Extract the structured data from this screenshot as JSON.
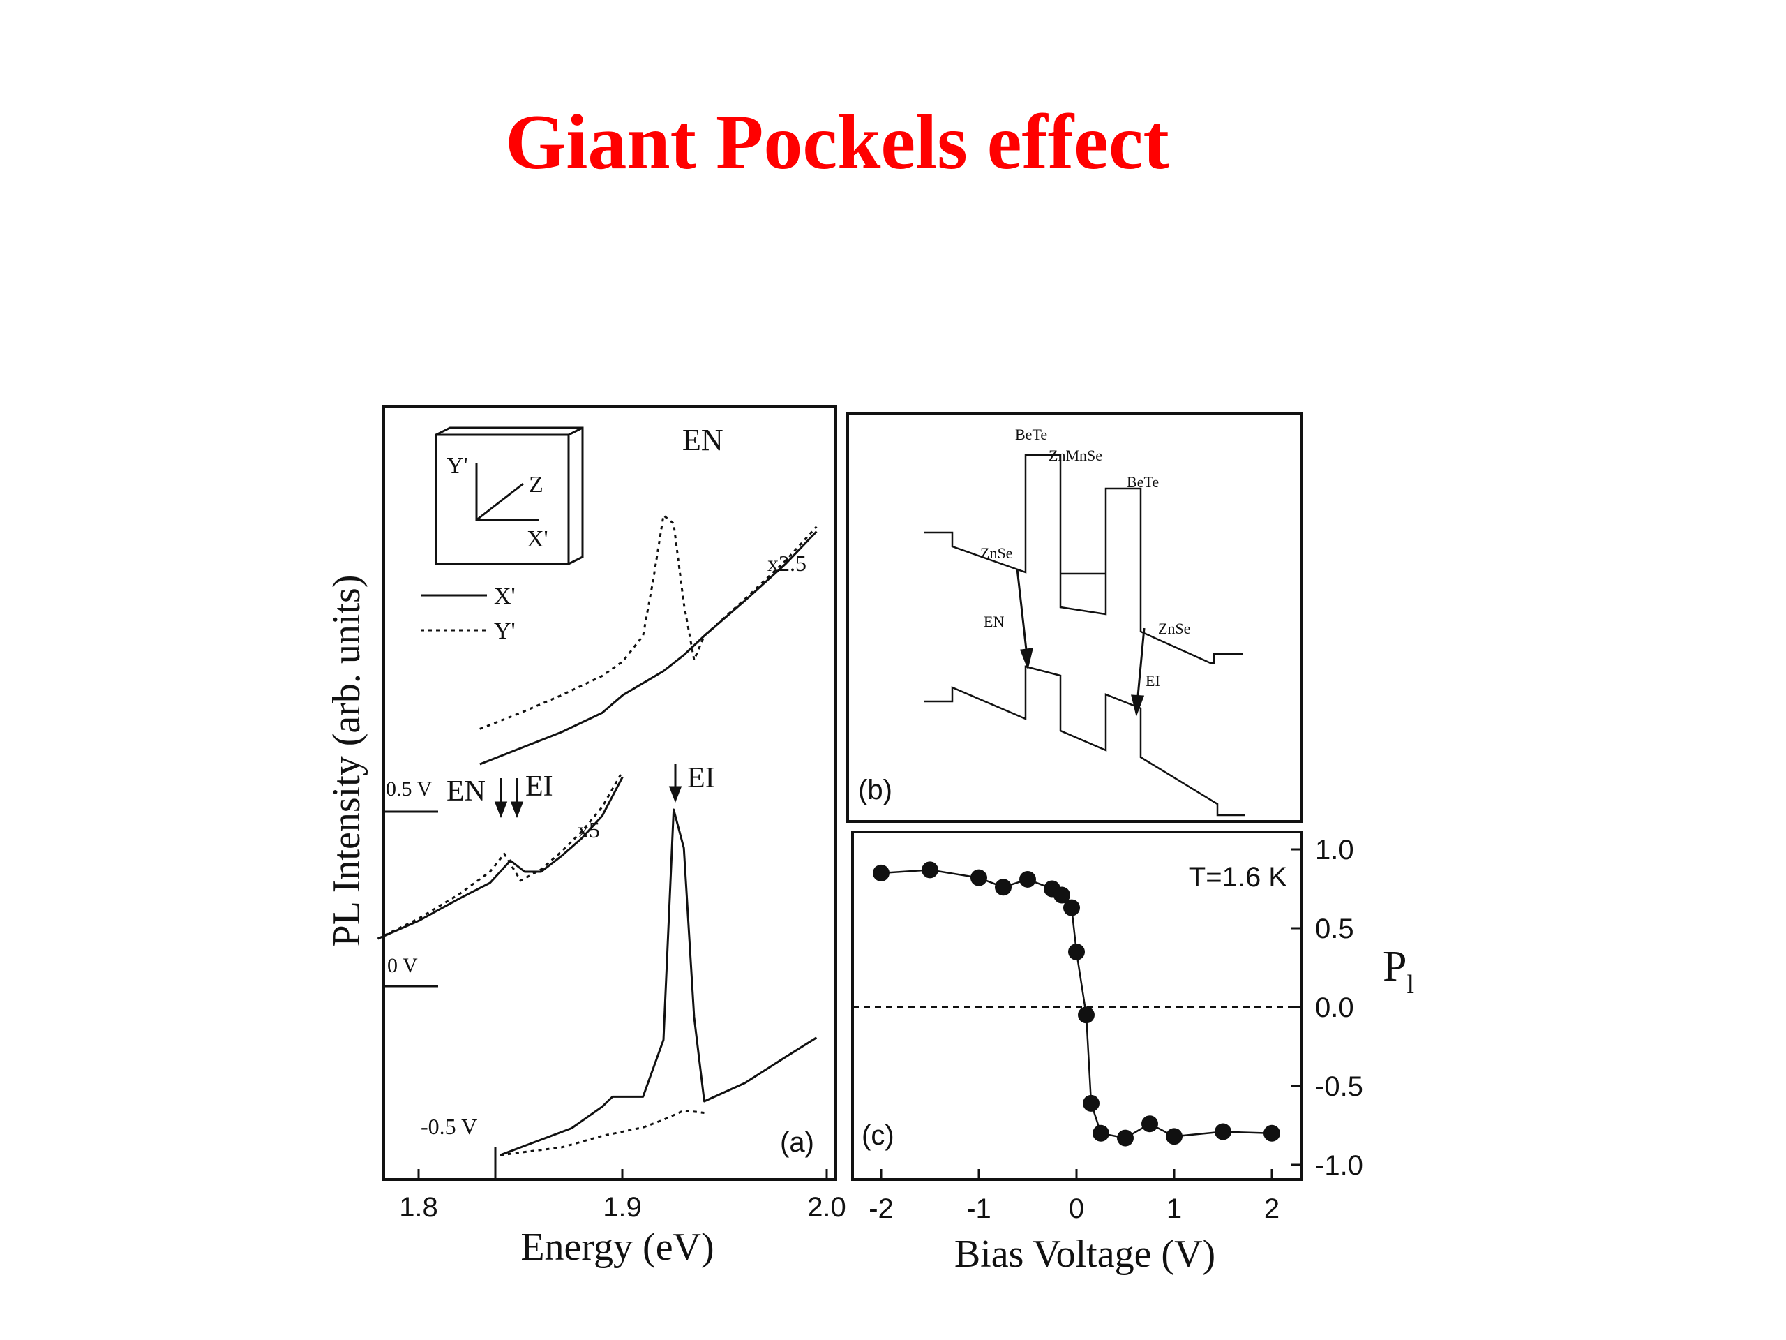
{
  "slide": {
    "title": "Giant Pockels effect"
  },
  "colors": {
    "title": "#ff0000",
    "ink": "#111111"
  },
  "chart_data": [
    {
      "id": "a",
      "type": "line",
      "panel_label": "(a)",
      "xlabel": "Energy (eV)",
      "ylabel": "PL Intensity (arb. units)",
      "xlim": [
        1.78,
        2.0
      ],
      "xticks": [
        "1.8",
        "1.9",
        "2.0"
      ],
      "legend": {
        "placement": "top-left",
        "entries": [
          {
            "label": "X'",
            "style": "solid"
          },
          {
            "label": "Y'",
            "style": "dotted"
          }
        ]
      },
      "inset_axes": [
        "Y'",
        "Z",
        "X'"
      ],
      "traces": [
        {
          "bias": "0.5 V",
          "scale_label": "x2.5",
          "series": [
            {
              "polarization": "X'",
              "style": "solid",
              "x": [
                1.83,
                1.85,
                1.87,
                1.89,
                1.9,
                1.92,
                1.93,
                1.94,
                1.96,
                1.98,
                1.995
              ],
              "y": [
                0,
                1.0,
                2.0,
                3.2,
                4.3,
                5.8,
                6.8,
                8.0,
                10.2,
                12.5,
                14.5
              ]
            },
            {
              "polarization": "Y'",
              "style": "dotted",
              "x": [
                1.83,
                1.85,
                1.87,
                1.89,
                1.9,
                1.91,
                1.915,
                1.92,
                1.925,
                1.93,
                1.935,
                1.94,
                1.96,
                1.98,
                1.995
              ],
              "y": [
                2.2,
                3.2,
                4.3,
                5.5,
                6.4,
                8.0,
                11.5,
                15.5,
                15.0,
                10.0,
                6.5,
                8.0,
                10.3,
                12.7,
                14.8
              ]
            }
          ]
        },
        {
          "bias": "0 V",
          "scale_label": "x5",
          "peak_labels": [
            "EN",
            "EI"
          ],
          "series": [
            {
              "polarization": "X'",
              "style": "solid",
              "x": [
                1.78,
                1.8,
                1.82,
                1.835,
                1.845,
                1.852,
                1.86,
                1.87,
                1.88,
                1.89,
                1.9
              ],
              "y": [
                0,
                1.6,
                3.6,
                5.0,
                7.0,
                6.0,
                6.0,
                7.4,
                9.0,
                11.0,
                14.5
              ]
            },
            {
              "polarization": "Y'",
              "style": "dotted",
              "x": [
                1.78,
                1.8,
                1.82,
                1.835,
                1.842,
                1.85,
                1.86,
                1.87,
                1.88,
                1.89,
                1.9
              ],
              "y": [
                0,
                1.8,
                4.0,
                6.0,
                7.6,
                5.2,
                6.2,
                7.8,
                9.6,
                11.8,
                15.0
              ]
            }
          ]
        },
        {
          "bias": "-0.5 V",
          "peak_labels": [
            "EI"
          ],
          "series": [
            {
              "polarization": "X'",
              "style": "solid",
              "x": [
                1.84,
                1.86,
                1.875,
                1.89,
                1.895,
                1.91,
                1.92,
                1.925,
                1.93,
                1.935,
                1.94,
                1.96,
                1.98,
                1.995
              ],
              "y": [
                0,
                2.0,
                3.5,
                6.3,
                7.6,
                7.6,
                15,
                45,
                40,
                18,
                7.0,
                9.4,
                12.8,
                15.3
              ]
            },
            {
              "polarization": "Y'",
              "style": "dotted",
              "x": [
                1.84,
                1.87,
                1.89,
                1.91,
                1.92,
                1.93,
                1.94
              ],
              "y": [
                0,
                1.0,
                2.5,
                3.6,
                4.6,
                5.8,
                5.5
              ]
            }
          ]
        }
      ]
    },
    {
      "id": "b",
      "type": "diagram",
      "panel_label": "(b)",
      "labels": {
        "bete_left": "BeTe",
        "znmnse": "ZnMnSe",
        "bete_right": "BeTe",
        "znse_left": "ZnSe",
        "znse_right": "ZnSe",
        "en": "EN",
        "ei": "EI"
      }
    },
    {
      "id": "c",
      "type": "scatter",
      "panel_label": "(c)",
      "annotation": "T=1.6 K",
      "xlabel": "Bias Voltage (V)",
      "ylabel": "P_l",
      "ylabel_main": "P",
      "ylabel_sub": "l",
      "xlim": [
        -2.2,
        2.3
      ],
      "ylim": [
        -1.1,
        1.05
      ],
      "xticks": [
        "-2",
        "-1",
        "0",
        "1",
        "2"
      ],
      "yticks": [
        "1.0",
        "0.5",
        "0.0",
        "-0.5",
        "-1.0"
      ],
      "reference_line": {
        "y": 0,
        "style": "dashed"
      },
      "x": [
        -2,
        -1.5,
        -1,
        -0.75,
        -0.5,
        -0.25,
        -0.15,
        -0.05,
        0,
        0.1,
        0.15,
        0.25,
        0.5,
        0.75,
        1,
        1.5,
        2
      ],
      "y": [
        0.85,
        0.87,
        0.82,
        0.76,
        0.81,
        0.75,
        0.71,
        0.63,
        0.35,
        -0.05,
        -0.61,
        -0.8,
        -0.83,
        -0.74,
        -0.82,
        -0.79,
        -0.8
      ]
    }
  ]
}
